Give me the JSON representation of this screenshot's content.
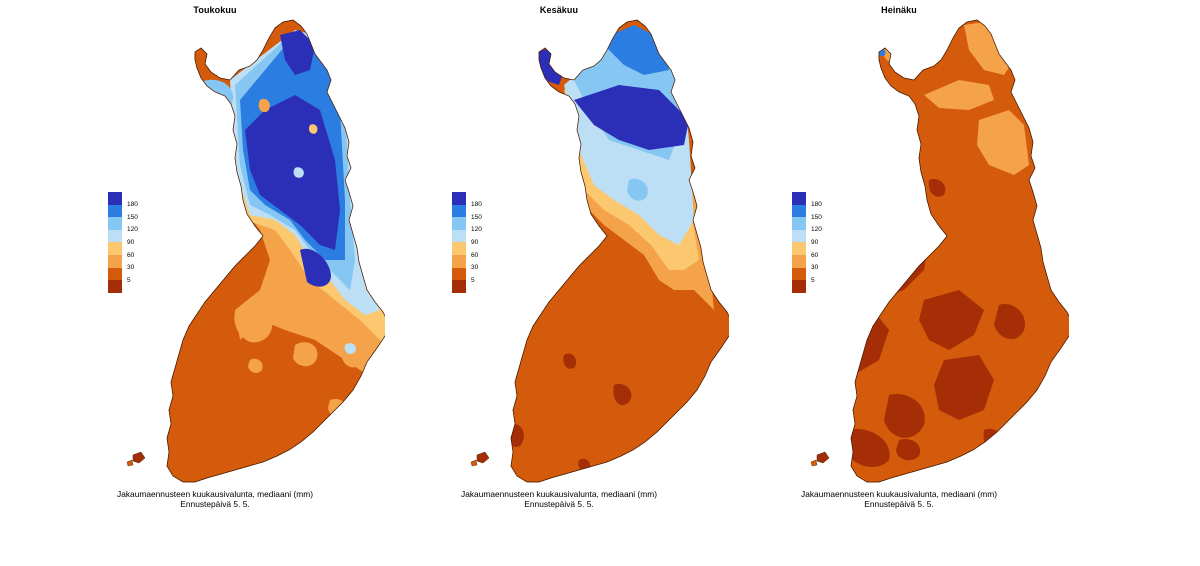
{
  "colors": {
    "c180": "#2b2fb8",
    "c150": "#2c7de2",
    "c120": "#86c6f2",
    "c90": "#bcdff5",
    "c60": "#fbc86f",
    "c30": "#f5a34a",
    "c5": "#d35b0b",
    "c0": "#a52e06"
  },
  "legend": {
    "labels": [
      "180",
      "150",
      "120",
      "90",
      "60",
      "30",
      "5"
    ],
    "swatch_colors": [
      "#2b2fb8",
      "#2c7de2",
      "#86c6f2",
      "#bcdff5",
      "#fbc86f",
      "#f5a34a",
      "#d35b0b",
      "#a52e06"
    ]
  },
  "caption": {
    "line1": "Jakaumaennusteen kuukausivalunta, mediaani (mm)",
    "line2": "Ennustepäivä 5. 5."
  },
  "panels": [
    {
      "month": "Toukokuu",
      "base_color": "#d35b0b"
    },
    {
      "month": "Kesäkuu",
      "base_color": "#d35b0b"
    },
    {
      "month": "Heinäku",
      "base_color": "#d35b0b"
    }
  ]
}
